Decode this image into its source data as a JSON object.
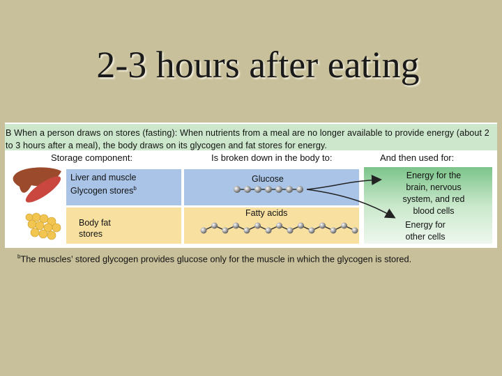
{
  "header": {
    "title": "2-3 hours after eating"
  },
  "panel": {
    "caption": "B When a person draws on stores (fasting): When nutrients from a meal are no longer available to provide energy (about 2 to 3 hours after a meal), the body draws on its glycogen and fat stores for energy.",
    "columns": [
      "Storage component:",
      "Is broken down in the body to:",
      "And then used for:"
    ],
    "rows": [
      {
        "storage": "Liver and muscle Glycogen stores",
        "note": "b",
        "product": "Glucose"
      },
      {
        "storage": "Body fat stores",
        "product": "Fatty acids"
      }
    ],
    "uses": [
      "Energy for the brain, nervous system, and red blood cells",
      "Energy for other cells"
    ]
  },
  "footnote": {
    "mark": "b",
    "text": "The muscles’ stored glycogen provides glucose only for the muscle in which the glycogen is stored."
  }
}
